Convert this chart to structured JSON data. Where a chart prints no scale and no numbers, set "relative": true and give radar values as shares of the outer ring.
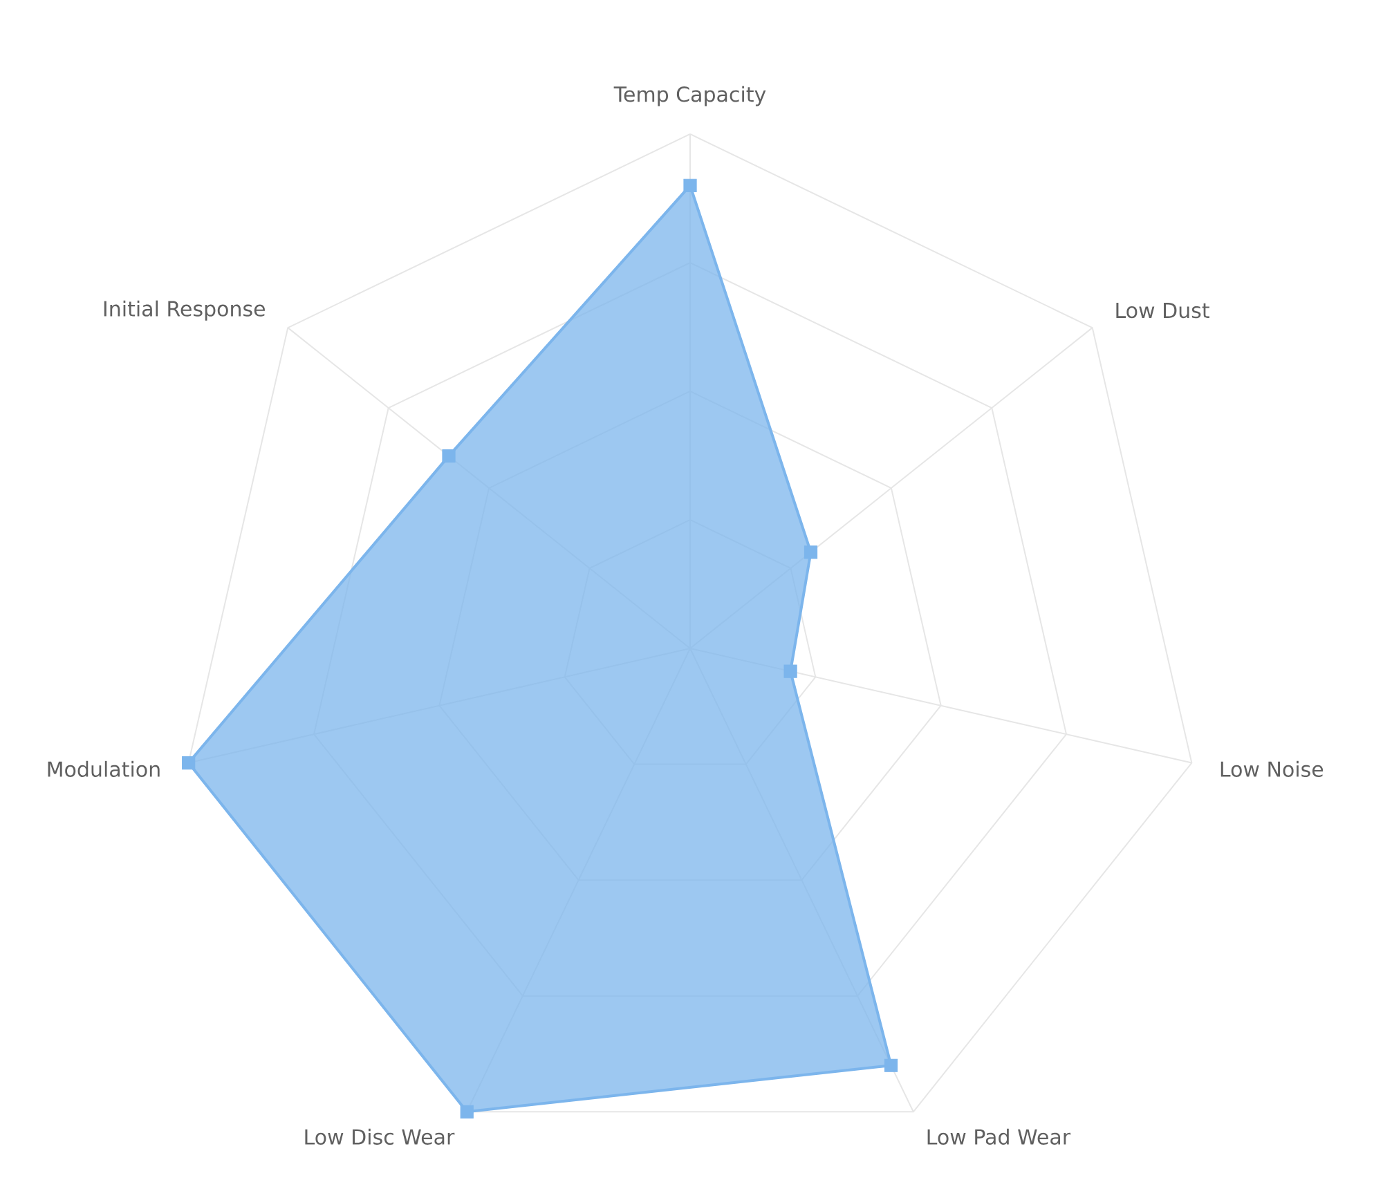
{
  "chart_data": {
    "type": "radar",
    "categories": [
      "Temp Capacity",
      "Low Dust",
      "Low Noise",
      "Low Pad Wear",
      "Low Disc Wear",
      "Modulation",
      "Initial Response"
    ],
    "series": [
      {
        "color": "#7cb5ec",
        "values": [
          0.9,
          0.3,
          0.2,
          0.9,
          1,
          1,
          0.6
        ]
      }
    ],
    "relative": true,
    "grid": true,
    "marker": "square",
    "line_style": "solid"
  }
}
